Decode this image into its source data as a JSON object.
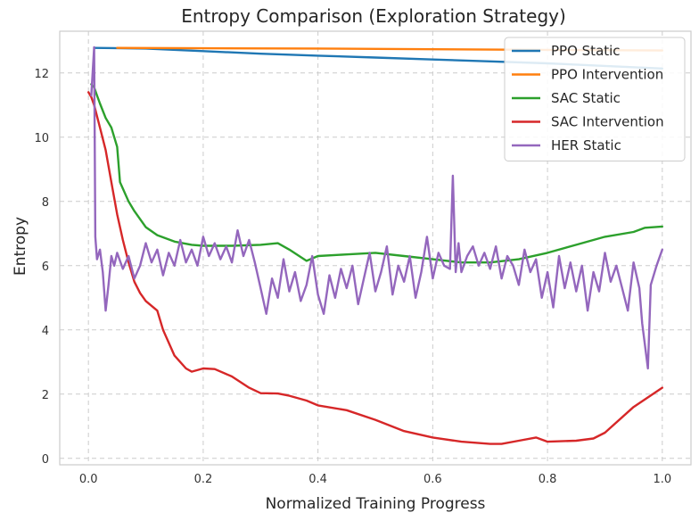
{
  "chart_data": {
    "type": "line",
    "title": "Entropy Comparison (Exploration Strategy)",
    "xlabel": "Normalized Training Progress",
    "ylabel": "Entropy",
    "xlim": [
      -0.05,
      1.05
    ],
    "ylim": [
      -0.2,
      13.3
    ],
    "xticks": [
      "0.0",
      "0.2",
      "0.4",
      "0.6",
      "0.8",
      "1.0"
    ],
    "yticks": [
      "0",
      "2",
      "4",
      "6",
      "8",
      "10",
      "12"
    ],
    "grid": true,
    "legend_position": "top-right",
    "series": [
      {
        "name": "PPO Static",
        "color": "#1f77b4",
        "x": [
          0.01,
          0.1,
          0.2,
          0.3,
          0.4,
          0.5,
          0.6,
          0.7,
          0.8,
          0.9,
          1.0
        ],
        "y": [
          12.78,
          12.76,
          12.68,
          12.6,
          12.54,
          12.48,
          12.42,
          12.36,
          12.3,
          12.22,
          12.14
        ]
      },
      {
        "name": "PPO Intervention",
        "color": "#ff7f0e",
        "x": [
          0.05,
          0.2,
          0.4,
          0.6,
          0.8,
          1.0
        ],
        "y": [
          12.78,
          12.77,
          12.76,
          12.74,
          12.72,
          12.7
        ]
      },
      {
        "name": "SAC Static",
        "color": "#2ca02c",
        "x": [
          0.005,
          0.01,
          0.015,
          0.02,
          0.03,
          0.04,
          0.05,
          0.055,
          0.06,
          0.07,
          0.08,
          0.1,
          0.12,
          0.15,
          0.18,
          0.2,
          0.25,
          0.3,
          0.33,
          0.35,
          0.38,
          0.4,
          0.45,
          0.5,
          0.55,
          0.6,
          0.65,
          0.7,
          0.75,
          0.8,
          0.85,
          0.9,
          0.95,
          0.97,
          1.0
        ],
        "y": [
          11.65,
          11.55,
          11.3,
          11.05,
          10.6,
          10.3,
          9.7,
          8.6,
          8.4,
          8.0,
          7.7,
          7.2,
          6.95,
          6.75,
          6.65,
          6.62,
          6.62,
          6.65,
          6.7,
          6.5,
          6.15,
          6.3,
          6.35,
          6.4,
          6.3,
          6.2,
          6.1,
          6.1,
          6.2,
          6.4,
          6.65,
          6.9,
          7.05,
          7.18,
          7.22
        ]
      },
      {
        "name": "SAC Intervention",
        "color": "#d62728",
        "x": [
          0.0,
          0.005,
          0.01,
          0.02,
          0.03,
          0.04,
          0.05,
          0.06,
          0.07,
          0.08,
          0.09,
          0.1,
          0.12,
          0.13,
          0.15,
          0.17,
          0.18,
          0.2,
          0.22,
          0.25,
          0.28,
          0.3,
          0.33,
          0.35,
          0.38,
          0.4,
          0.45,
          0.5,
          0.55,
          0.6,
          0.65,
          0.7,
          0.72,
          0.75,
          0.78,
          0.8,
          0.85,
          0.88,
          0.9,
          0.95,
          1.0
        ],
        "y": [
          11.4,
          11.25,
          11.0,
          10.3,
          9.6,
          8.6,
          7.6,
          6.8,
          6.1,
          5.5,
          5.15,
          4.9,
          4.6,
          4.0,
          3.2,
          2.8,
          2.7,
          2.8,
          2.78,
          2.55,
          2.2,
          2.03,
          2.02,
          1.95,
          1.8,
          1.65,
          1.5,
          1.2,
          0.85,
          0.65,
          0.52,
          0.45,
          0.45,
          0.55,
          0.65,
          0.52,
          0.55,
          0.62,
          0.8,
          1.6,
          2.2
        ]
      },
      {
        "name": "HER Static",
        "color": "#9467bd",
        "x": [
          0.005,
          0.01,
          0.012,
          0.015,
          0.02,
          0.025,
          0.03,
          0.035,
          0.04,
          0.045,
          0.05,
          0.06,
          0.07,
          0.08,
          0.09,
          0.1,
          0.11,
          0.12,
          0.13,
          0.14,
          0.15,
          0.16,
          0.17,
          0.18,
          0.19,
          0.2,
          0.21,
          0.22,
          0.23,
          0.24,
          0.25,
          0.26,
          0.27,
          0.28,
          0.29,
          0.3,
          0.31,
          0.32,
          0.33,
          0.34,
          0.35,
          0.36,
          0.37,
          0.38,
          0.39,
          0.4,
          0.41,
          0.42,
          0.43,
          0.44,
          0.45,
          0.46,
          0.47,
          0.48,
          0.49,
          0.5,
          0.51,
          0.52,
          0.53,
          0.54,
          0.55,
          0.56,
          0.57,
          0.58,
          0.59,
          0.6,
          0.61,
          0.62,
          0.63,
          0.635,
          0.64,
          0.645,
          0.65,
          0.66,
          0.67,
          0.68,
          0.69,
          0.7,
          0.71,
          0.72,
          0.73,
          0.74,
          0.75,
          0.76,
          0.77,
          0.78,
          0.79,
          0.8,
          0.81,
          0.82,
          0.83,
          0.84,
          0.85,
          0.86,
          0.87,
          0.88,
          0.89,
          0.9,
          0.91,
          0.92,
          0.93,
          0.94,
          0.95,
          0.96,
          0.965,
          0.97,
          0.975,
          0.98,
          0.99,
          1.0
        ],
        "y": [
          11.3,
          12.8,
          6.9,
          6.2,
          6.5,
          5.8,
          4.6,
          5.4,
          6.3,
          6.0,
          6.4,
          5.9,
          6.3,
          5.6,
          6.0,
          6.7,
          6.1,
          6.5,
          5.7,
          6.4,
          6.0,
          6.8,
          6.1,
          6.5,
          6.0,
          6.9,
          6.3,
          6.7,
          6.2,
          6.6,
          6.1,
          7.1,
          6.3,
          6.8,
          6.1,
          5.3,
          4.5,
          5.6,
          5.0,
          6.2,
          5.2,
          5.8,
          4.9,
          5.4,
          6.3,
          5.1,
          4.5,
          5.7,
          5.0,
          5.9,
          5.3,
          6.0,
          4.8,
          5.6,
          6.4,
          5.2,
          5.8,
          6.6,
          5.1,
          6.0,
          5.5,
          6.3,
          5.0,
          5.8,
          6.9,
          5.6,
          6.4,
          6.0,
          5.9,
          8.8,
          5.8,
          6.7,
          5.8,
          6.3,
          6.6,
          6.0,
          6.4,
          5.9,
          6.6,
          5.6,
          6.3,
          6.0,
          5.4,
          6.5,
          5.8,
          6.2,
          5.0,
          5.8,
          4.7,
          6.3,
          5.3,
          6.1,
          5.2,
          6.0,
          4.6,
          5.8,
          5.2,
          6.4,
          5.5,
          6.0,
          5.3,
          4.6,
          6.1,
          5.3,
          4.2,
          3.5,
          2.8,
          5.4,
          6.0,
          6.5
        ]
      }
    ]
  }
}
